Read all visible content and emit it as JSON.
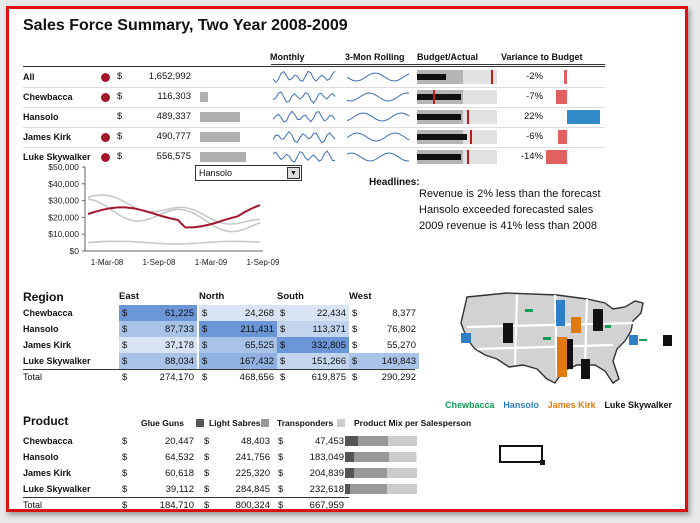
{
  "title": "Sales Force Summary, Two Year 2008-2009",
  "summary": {
    "headers": [
      "Monthly",
      "3-Mon Rolling",
      "Budget/Actual",
      "Variance to Budget"
    ],
    "rows": [
      {
        "name": "All",
        "flag": true,
        "cur": "$",
        "value": "1,652,992",
        "bar": 0,
        "variance": "-2%",
        "var_num": -2
      },
      {
        "name": "Chewbacca",
        "flag": true,
        "cur": "$",
        "value": "116,303",
        "bar": 0.18,
        "variance": "-7%",
        "var_num": -7
      },
      {
        "name": "Hansolo",
        "flag": false,
        "cur": "$",
        "value": "489,337",
        "bar": 0.88,
        "variance": "22%",
        "var_num": 22
      },
      {
        "name": "James Kirk",
        "flag": true,
        "cur": "$",
        "value": "490,777",
        "bar": 0.88,
        "variance": "-6%",
        "var_num": -6
      },
      {
        "name": "Luke Skywalker",
        "flag": true,
        "cur": "$",
        "value": "556,575",
        "bar": 1.0,
        "variance": "-14%",
        "var_num": -14
      }
    ]
  },
  "line_chart": {
    "y_ticks": [
      "$50,000",
      "$40,000",
      "$30,000",
      "$20,000",
      "$10,000",
      "$0"
    ],
    "x_ticks": [
      "1-Mar-08",
      "1-Sep-08",
      "1-Mar-09",
      "1-Sep-09"
    ],
    "selected": "Hansolo"
  },
  "headlines": {
    "title": "Headlines:",
    "lines": [
      "Revenue is 2% less than the forecast",
      "Hansolo exceeded forecasted sales",
      "2009 revenue is 41% less than 2008"
    ]
  },
  "region": {
    "title": "Region",
    "columns": [
      "East",
      "North",
      "South",
      "West"
    ],
    "rows": [
      {
        "name": "Chewbacca",
        "vals": [
          "61,225",
          "24,268",
          "22,434",
          "8,377"
        ]
      },
      {
        "name": "Hansolo",
        "vals": [
          "87,733",
          "211,431",
          "113,371",
          "76,802"
        ]
      },
      {
        "name": "James Kirk",
        "vals": [
          "37,178",
          "65,525",
          "332,805",
          "55,270"
        ]
      },
      {
        "name": "Luke Skywalker",
        "vals": [
          "88,034",
          "167,432",
          "151,266",
          "149,843"
        ]
      }
    ],
    "total": {
      "name": "Total",
      "vals": [
        "274,170",
        "468,656",
        "619,875",
        "290,292"
      ]
    }
  },
  "map_legend": [
    {
      "name": "Chewbacca",
      "color": "#159a57"
    },
    {
      "name": "Hansolo",
      "color": "#2f7ec8"
    },
    {
      "name": "James Kirk",
      "color": "#e07a10"
    },
    {
      "name": "Luke Skywalker",
      "color": "#111111"
    }
  ],
  "product": {
    "title": "Product",
    "columns": [
      "Glue Guns",
      "Light Sabres",
      "Transponders"
    ],
    "mix_label": "Product Mix per Salesperson",
    "rows": [
      {
        "name": "Chewbacca",
        "vals": [
          "20,447",
          "48,403",
          "47,453"
        ],
        "mix": [
          0.18,
          0.42,
          0.4
        ]
      },
      {
        "name": "Hansolo",
        "vals": [
          "64,532",
          "241,756",
          "183,049"
        ],
        "mix": [
          0.13,
          0.49,
          0.38
        ]
      },
      {
        "name": "James Kirk",
        "vals": [
          "60,618",
          "225,320",
          "204,839"
        ],
        "mix": [
          0.12,
          0.46,
          0.42
        ]
      },
      {
        "name": "Luke Skywalker",
        "vals": [
          "39,112",
          "284,845",
          "232,618"
        ],
        "mix": [
          0.07,
          0.51,
          0.42
        ]
      }
    ],
    "total": {
      "name": "Total",
      "vals": [
        "184,710",
        "800,324",
        "667,959"
      ]
    }
  },
  "currency": "$"
}
